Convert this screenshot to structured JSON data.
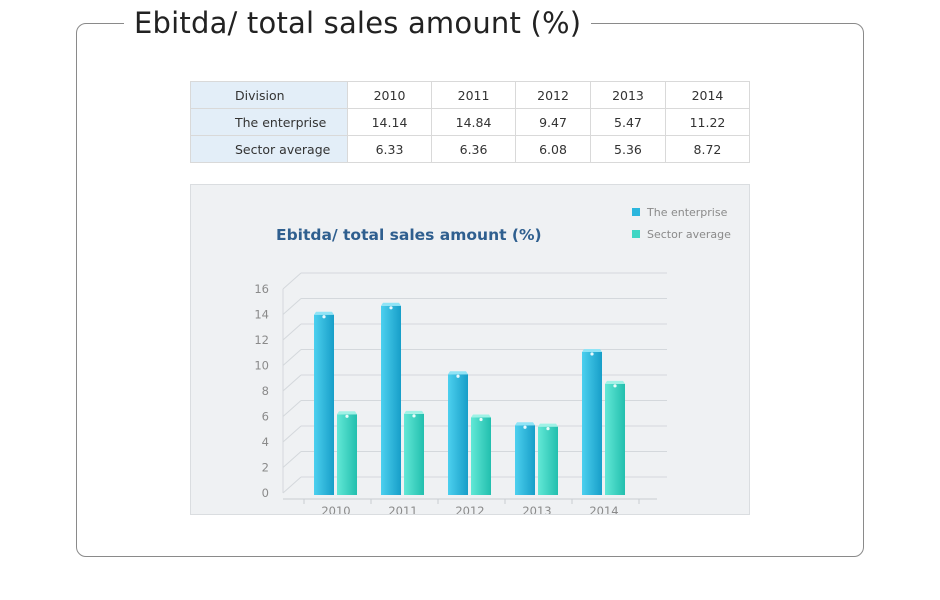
{
  "page": {
    "title": "Ebitda/ total sales amount (%)"
  },
  "table": {
    "header": [
      "Division",
      "2010",
      "2011",
      "2012",
      "2013",
      "2014"
    ],
    "rows": [
      {
        "label": "The enterprise",
        "values": [
          "14.14",
          "14.84",
          "9.47",
          "5.47",
          "11.22"
        ]
      },
      {
        "label": "Sector average",
        "values": [
          "6.33",
          "6.36",
          "6.08",
          "5.36",
          "8.72"
        ]
      }
    ]
  },
  "chart_data": {
    "type": "bar",
    "title": "Ebitda/ total sales amount (%)",
    "categories": [
      "2010",
      "2011",
      "2012",
      "2013",
      "2014"
    ],
    "series": [
      {
        "name": "The enterprise",
        "values": [
          14.14,
          14.84,
          9.47,
          5.47,
          11.22
        ],
        "color": "#2bb6dd"
      },
      {
        "name": "Sector average",
        "values": [
          6.33,
          6.36,
          6.08,
          5.36,
          8.72
        ],
        "color": "#3fd6c4"
      }
    ],
    "yticks": [
      0,
      2,
      4,
      6,
      8,
      10,
      12,
      14,
      16
    ],
    "ylim": [
      0,
      16
    ],
    "xlabel": "",
    "ylabel": "",
    "legend": "top-right",
    "grid": true
  },
  "colors": {
    "title_blue": "#2f5f8f",
    "axis_text": "#8a8a8a",
    "grid": "#d4d8dc"
  }
}
